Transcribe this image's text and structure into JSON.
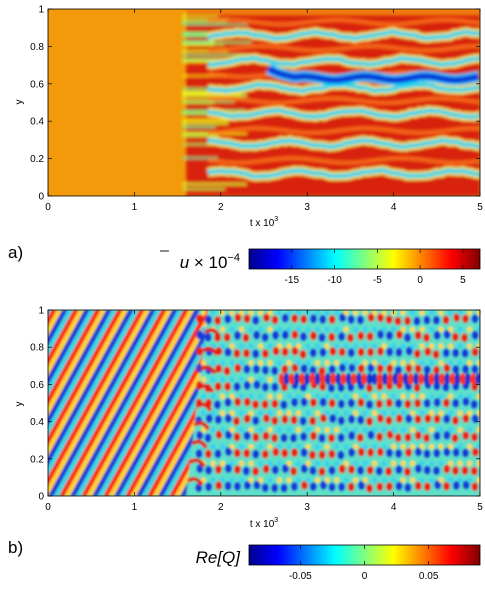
{
  "chart_data": [
    {
      "type": "heatmap",
      "panel_label": "a)",
      "xlabel_main": "t x 10",
      "xlabel_exp": "3",
      "ylabel": "y",
      "x_ticks": [
        "0",
        "1",
        "2",
        "3",
        "4",
        "5"
      ],
      "y_ticks": [
        "0",
        "0.2",
        "0.4",
        "0.6",
        "0.8",
        "1"
      ],
      "xlim": [
        0,
        5
      ],
      "ylim": [
        0,
        1
      ],
      "colorbar": {
        "label_main": "u",
        "label_rest": " × 10",
        "label_exp": "−4",
        "ticks": [
          "-15",
          "-10",
          "-5",
          "0",
          "5"
        ],
        "tick_values": [
          -15,
          -10,
          -5,
          0,
          5
        ],
        "range": [
          -20,
          7
        ]
      },
      "field": {
        "uniform_until_t": 1.6,
        "uniform_color": "#f39a0a",
        "band_centers_y": [
          0.12,
          0.28,
          0.44,
          0.58,
          0.72,
          0.86
        ],
        "strong_band": {
          "y": 0.63,
          "from_t": 2.7
        }
      }
    },
    {
      "type": "heatmap",
      "panel_label": "b)",
      "xlabel_main": "t x 10",
      "xlabel_exp": "3",
      "ylabel": "y",
      "x_ticks": [
        "0",
        "1",
        "2",
        "3",
        "4",
        "5"
      ],
      "y_ticks": [
        "0",
        "0.2",
        "0.4",
        "0.6",
        "0.8",
        "1"
      ],
      "xlim": [
        0,
        5
      ],
      "ylim": [
        0,
        1
      ],
      "colorbar": {
        "label": "Re[Q]",
        "ticks": [
          "-0.05",
          "0",
          "0.05"
        ],
        "tick_values": [
          -0.05,
          0,
          0.05
        ],
        "range": [
          -0.09,
          0.09
        ]
      },
      "field": {
        "front_t_bottom": 1.6,
        "front_t_top": 1.85,
        "stripe_count": 10
      }
    }
  ],
  "colormap": [
    "#00008f",
    "#0000ff",
    "#00ffff",
    "#ffff00",
    "#ff0000",
    "#800000"
  ]
}
